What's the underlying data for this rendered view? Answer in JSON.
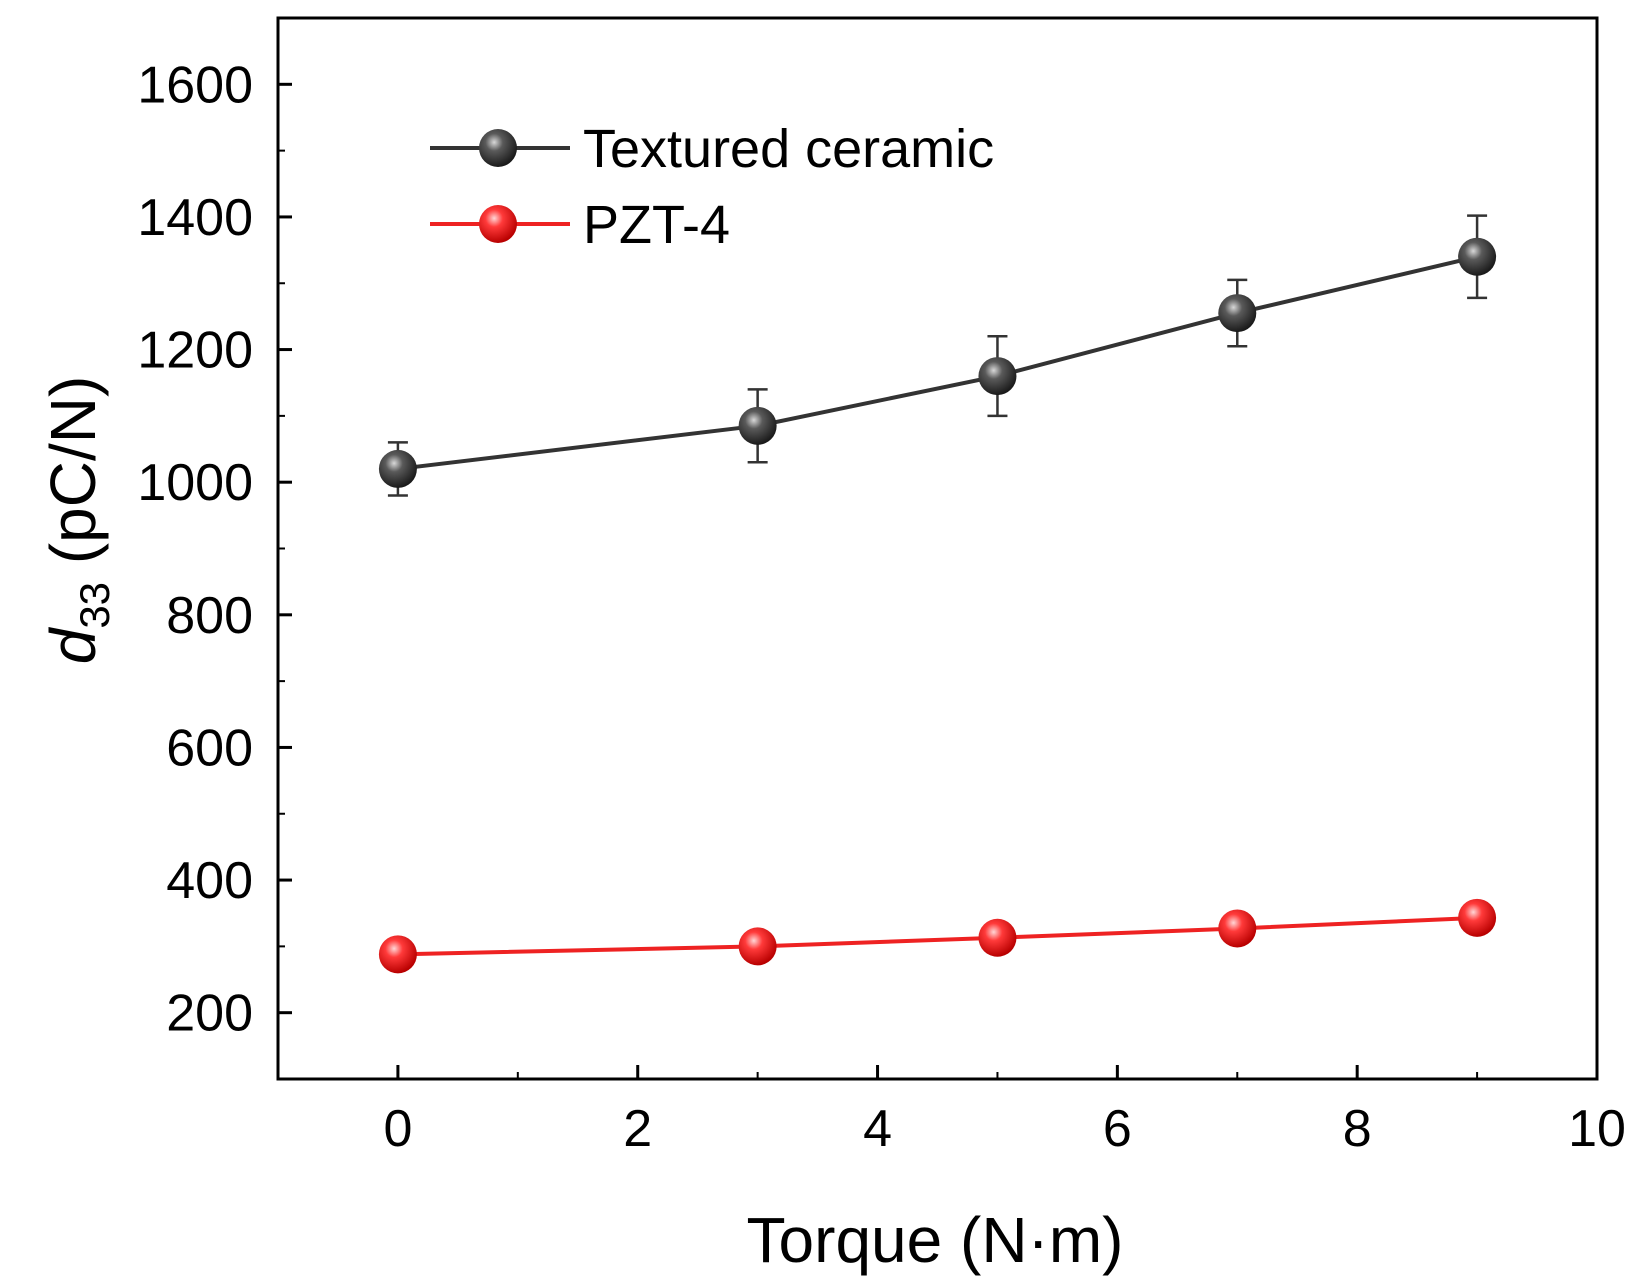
{
  "chart_data": {
    "type": "line",
    "title": "",
    "xlabel": "Torque (N·m)",
    "ylabel_main": "d",
    "ylabel_sub": "33",
    "ylabel_unit": " (pC/N)",
    "xlim": [
      -1,
      10
    ],
    "ylim": [
      100,
      1700
    ],
    "xticks": [
      0,
      2,
      4,
      6,
      8,
      10
    ],
    "xtick_labels": [
      "0",
      "2",
      "4",
      "6",
      "8",
      "10"
    ],
    "yticks": [
      200,
      400,
      600,
      800,
      1000,
      1200,
      1400,
      1600
    ],
    "ytick_labels": [
      "200",
      "400",
      "600",
      "800",
      "1000",
      "1200",
      "1400",
      "1600"
    ],
    "grid": false,
    "legend_position": "top-left",
    "series": [
      {
        "name": "Textured ceramic",
        "color": "#333333",
        "x": [
          0,
          3,
          5,
          7,
          9
        ],
        "y": [
          1020,
          1085,
          1160,
          1255,
          1340
        ],
        "err": [
          40,
          55,
          60,
          50,
          62
        ]
      },
      {
        "name": "PZT-4",
        "color": "#ee2222",
        "x": [
          0,
          3,
          5,
          7,
          9
        ],
        "y": [
          288,
          300,
          313,
          327,
          343
        ],
        "err": [
          0,
          0,
          0,
          0,
          0
        ]
      }
    ]
  }
}
